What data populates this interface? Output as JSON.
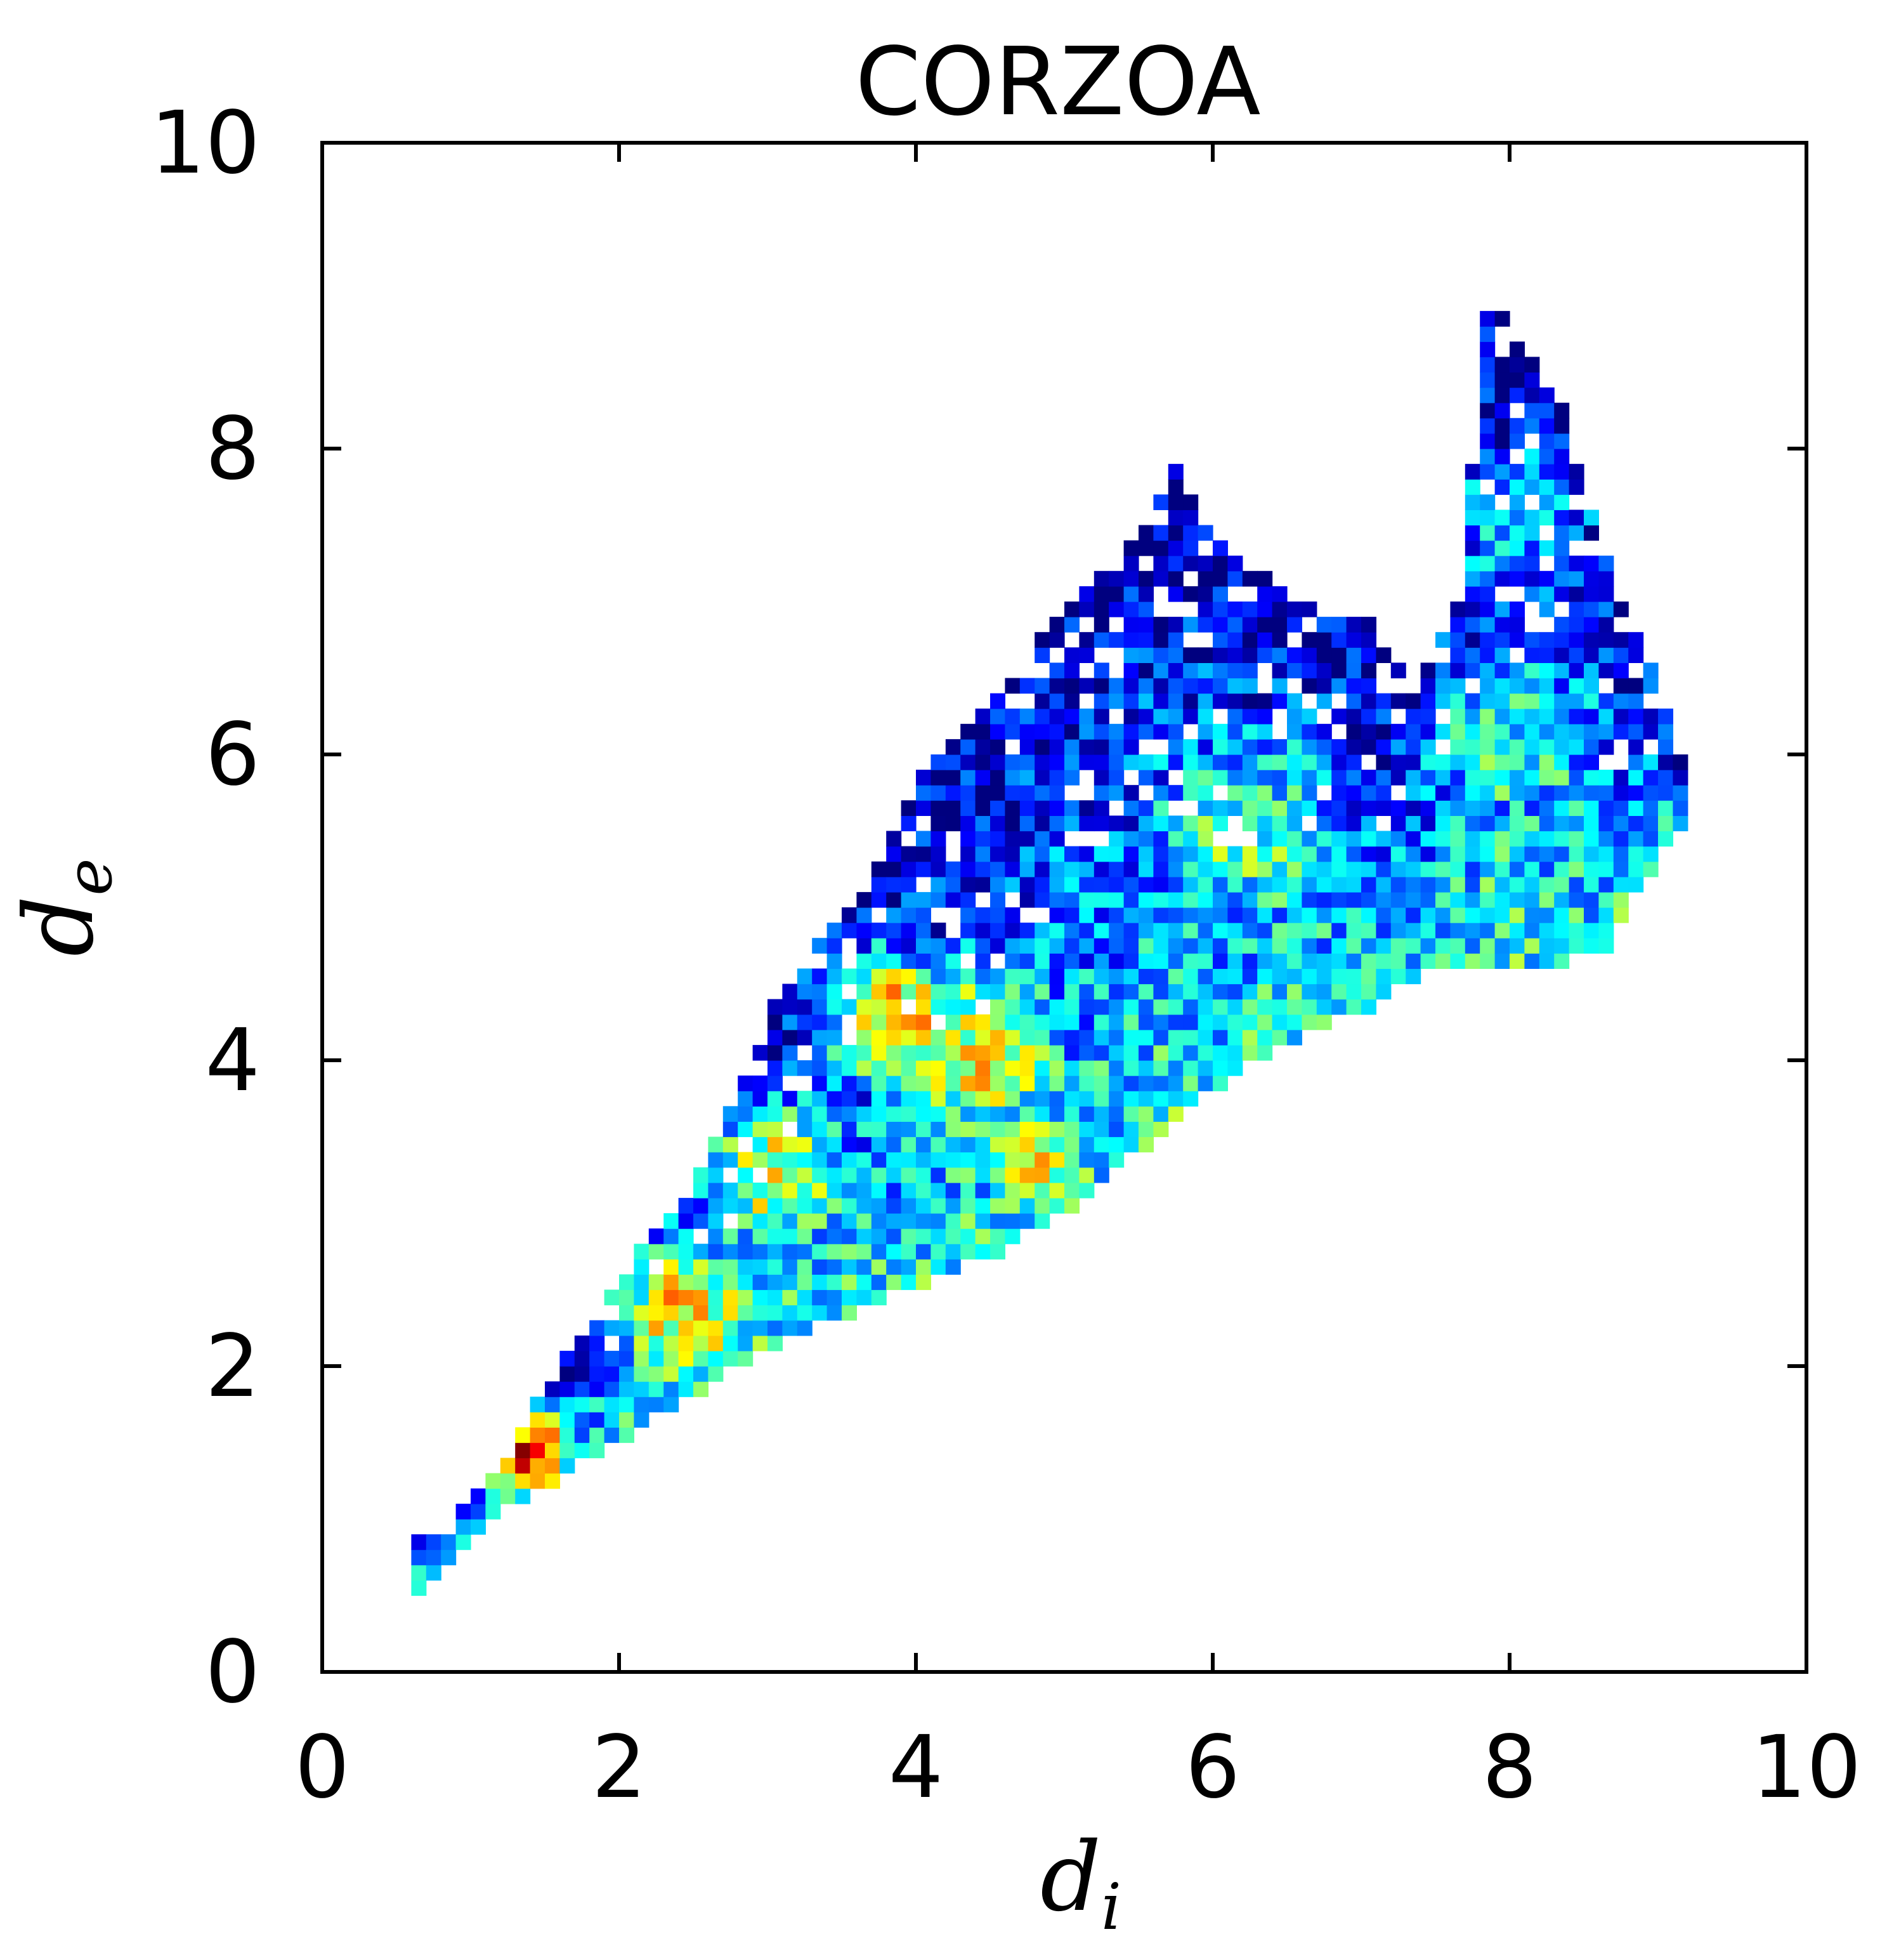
{
  "chart_data": {
    "type": "heatmap",
    "title": "CORZOA",
    "xlabel": {
      "main": "d",
      "sub": "i"
    },
    "ylabel": {
      "main": "d",
      "sub": "e"
    },
    "xlim": [
      0,
      10
    ],
    "ylim": [
      0,
      10
    ],
    "xticks": [
      "0",
      "2",
      "4",
      "6",
      "8",
      "10"
    ],
    "yticks": [
      "0",
      "2",
      "4",
      "6",
      "8",
      "10"
    ],
    "grid": false,
    "legend": "none",
    "colormap": [
      "#00007f",
      "#0000ff",
      "#007fff",
      "#00ffff",
      "#7fff7f",
      "#ffff00",
      "#ff7f00",
      "#ff0000",
      "#7f0000"
    ],
    "bin_size": 0.1,
    "seed": 20240611,
    "envelope": {
      "di": [
        0.6,
        1.0,
        1.5,
        2.0,
        2.5,
        3.0,
        3.5,
        4.0,
        4.5,
        5.0,
        5.5,
        5.7,
        6.0,
        6.5,
        7.0,
        7.3,
        7.6,
        7.8,
        8.0,
        8.3,
        8.6,
        8.9,
        9.1
      ],
      "de_low": [
        0.5,
        0.9,
        1.2,
        1.5,
        1.8,
        2.1,
        2.3,
        2.5,
        2.7,
        3.0,
        3.4,
        3.6,
        3.8,
        4.1,
        4.3,
        4.5,
        4.6,
        4.6,
        4.6,
        4.6,
        4.7,
        5.2,
        5.5
      ],
      "de_high": [
        0.8,
        1.1,
        1.9,
        2.6,
        3.2,
        4.3,
        5.0,
        5.8,
        6.3,
        7.0,
        7.4,
        7.8,
        7.3,
        7.0,
        6.8,
        6.4,
        7.0,
        8.9,
        8.7,
        8.2,
        7.2,
        6.5,
        5.9
      ]
    },
    "hotspots": [
      {
        "di": 1.3,
        "de": 1.4,
        "level": 0.82,
        "spread": 0.4
      },
      {
        "di": 2.4,
        "de": 2.3,
        "level": 0.65,
        "spread": 0.6
      },
      {
        "di": 3.8,
        "de": 4.2,
        "level": 0.72,
        "spread": 0.5
      },
      {
        "di": 4.7,
        "de": 3.3,
        "level": 0.7,
        "spread": 0.4
      },
      {
        "di": 4.4,
        "de": 4.0,
        "level": 0.62,
        "spread": 0.7
      },
      {
        "di": 3.0,
        "de": 3.2,
        "level": 0.6,
        "spread": 0.6
      },
      {
        "di": 6.2,
        "de": 5.4,
        "level": 0.45,
        "spread": 0.9
      },
      {
        "di": 8.0,
        "de": 6.0,
        "level": 0.42,
        "spread": 0.8
      },
      {
        "di": 8.0,
        "de": 7.5,
        "level": 0.35,
        "spread": 0.6
      }
    ]
  }
}
